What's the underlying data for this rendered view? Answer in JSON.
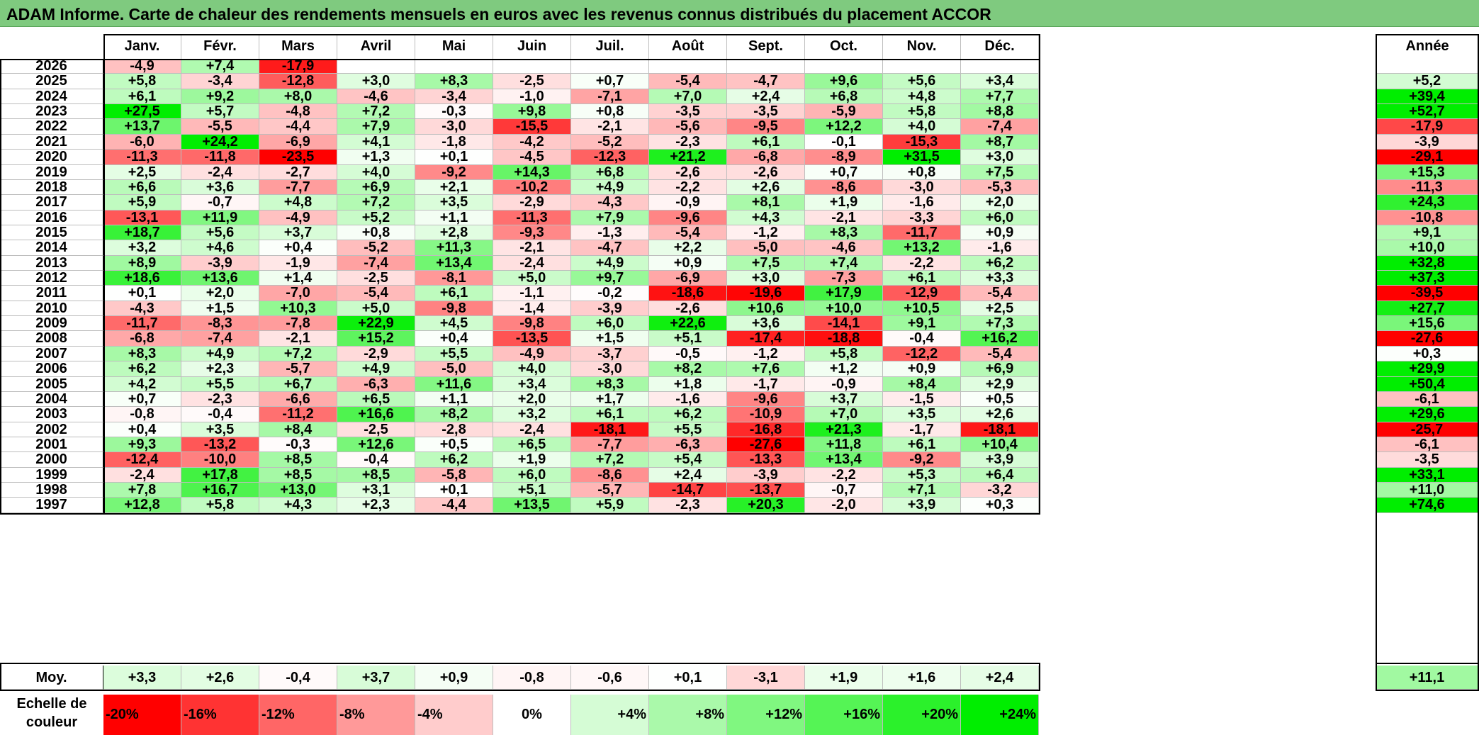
{
  "title": "ADAM Informe. Carte de chaleur des rendements mensuels en euros avec les revenus connus distribués du placement ACCOR",
  "chart_data": {
    "type": "heatmap",
    "title": "ADAM Informe. Carte de chaleur des rendements mensuels en euros avec les revenus connus distribués du placement ACCOR",
    "columns": [
      "Janv.",
      "Févr.",
      "Mars",
      "Avril",
      "Mai",
      "Juin",
      "Juil.",
      "Août",
      "Sept.",
      "Oct.",
      "Nov.",
      "Déc."
    ],
    "year_column_label": "Année",
    "rows": [
      {
        "year": "2026",
        "values": [
          "-4,9",
          "+7,4",
          "-17,9",
          "",
          "",
          "",
          "",
          "",
          "",
          "",
          "",
          ""
        ],
        "annual": ""
      },
      {
        "year": "2025",
        "values": [
          "+5,8",
          "-3,4",
          "-12,8",
          "+3,0",
          "+8,3",
          "-2,5",
          "+0,7",
          "-5,4",
          "-4,7",
          "+9,6",
          "+5,6",
          "+3,4"
        ],
        "annual": "+5,2"
      },
      {
        "year": "2024",
        "values": [
          "+6,1",
          "+9,2",
          "+8,0",
          "-4,6",
          "-3,4",
          "-1,0",
          "-7,1",
          "+7,0",
          "+2,4",
          "+6,8",
          "+4,8",
          "+7,7"
        ],
        "annual": "+39,4"
      },
      {
        "year": "2023",
        "values": [
          "+27,5",
          "+5,7",
          "-4,8",
          "+7,2",
          "-0,3",
          "+9,8",
          "+0,8",
          "-3,5",
          "-3,5",
          "-5,9",
          "+5,8",
          "+8,8"
        ],
        "annual": "+52,7"
      },
      {
        "year": "2022",
        "values": [
          "+13,7",
          "-5,5",
          "-4,4",
          "+7,9",
          "-3,0",
          "-15,5",
          "-2,1",
          "-5,6",
          "-9,5",
          "+12,2",
          "+4,0",
          "-7,4"
        ],
        "annual": "-17,9"
      },
      {
        "year": "2021",
        "values": [
          "-6,0",
          "+24,2",
          "-6,9",
          "+4,1",
          "-1,8",
          "-4,2",
          "-5,2",
          "-2,3",
          "+6,1",
          "-0,1",
          "-15,3",
          "+8,7"
        ],
        "annual": "-3,9"
      },
      {
        "year": "2020",
        "values": [
          "-11,3",
          "-11,8",
          "-23,5",
          "+1,3",
          "+0,1",
          "-4,5",
          "-12,3",
          "+21,2",
          "-6,8",
          "-8,9",
          "+31,5",
          "+3,0"
        ],
        "annual": "-29,1"
      },
      {
        "year": "2019",
        "values": [
          "+2,5",
          "-2,4",
          "-2,7",
          "+4,0",
          "-9,2",
          "+14,3",
          "+6,8",
          "-2,6",
          "-2,6",
          "+0,7",
          "+0,8",
          "+7,5"
        ],
        "annual": "+15,3"
      },
      {
        "year": "2018",
        "values": [
          "+6,6",
          "+3,6",
          "-7,7",
          "+6,9",
          "+2,1",
          "-10,2",
          "+4,9",
          "-2,2",
          "+2,6",
          "-8,6",
          "-3,0",
          "-5,3"
        ],
        "annual": "-11,3"
      },
      {
        "year": "2017",
        "values": [
          "+5,9",
          "-0,7",
          "+4,8",
          "+7,2",
          "+3,5",
          "-2,9",
          "-4,3",
          "-0,9",
          "+8,1",
          "+1,9",
          "-1,6",
          "+2,0"
        ],
        "annual": "+24,3"
      },
      {
        "year": "2016",
        "values": [
          "-13,1",
          "+11,9",
          "-4,9",
          "+5,2",
          "+1,1",
          "-11,3",
          "+7,9",
          "-9,6",
          "+4,3",
          "-2,1",
          "-3,3",
          "+6,0"
        ],
        "annual": "-10,8"
      },
      {
        "year": "2015",
        "values": [
          "+18,7",
          "+5,6",
          "+3,7",
          "+0,8",
          "+2,8",
          "-9,3",
          "-1,3",
          "-5,4",
          "-1,2",
          "+8,3",
          "-11,7",
          "+0,9"
        ],
        "annual": "+9,1"
      },
      {
        "year": "2014",
        "values": [
          "+3,2",
          "+4,6",
          "+0,4",
          "-5,2",
          "+11,3",
          "-2,1",
          "-4,7",
          "+2,2",
          "-5,0",
          "-4,6",
          "+13,2",
          "-1,6"
        ],
        "annual": "+10,0"
      },
      {
        "year": "2013",
        "values": [
          "+8,9",
          "-3,9",
          "-1,9",
          "-7,4",
          "+13,4",
          "-2,4",
          "+4,9",
          "+0,9",
          "+7,5",
          "+7,4",
          "-2,2",
          "+6,2"
        ],
        "annual": "+32,8"
      },
      {
        "year": "2012",
        "values": [
          "+18,6",
          "+13,6",
          "+1,4",
          "-2,5",
          "-8,1",
          "+5,0",
          "+9,7",
          "-6,9",
          "+3,0",
          "-7,3",
          "+6,1",
          "+3,3"
        ],
        "annual": "+37,3"
      },
      {
        "year": "2011",
        "values": [
          "+0,1",
          "+2,0",
          "-7,0",
          "-5,4",
          "+6,1",
          "-1,1",
          "-0,2",
          "-18,6",
          "-19,6",
          "+17,9",
          "-12,9",
          "-5,4"
        ],
        "annual": "-39,5"
      },
      {
        "year": "2010",
        "values": [
          "-4,3",
          "+1,5",
          "+10,3",
          "+5,0",
          "-9,8",
          "-1,4",
          "-3,9",
          "-2,6",
          "+10,6",
          "+10,0",
          "+10,5",
          "+2,5"
        ],
        "annual": "+27,7"
      },
      {
        "year": "2009",
        "values": [
          "-11,7",
          "-8,3",
          "-7,8",
          "+22,9",
          "+4,5",
          "-9,8",
          "+6,0",
          "+22,6",
          "+3,6",
          "-14,1",
          "+9,1",
          "+7,3"
        ],
        "annual": "+15,6"
      },
      {
        "year": "2008",
        "values": [
          "-6,8",
          "-7,4",
          "-2,1",
          "+15,2",
          "+0,4",
          "-13,5",
          "+1,5",
          "+5,1",
          "-17,4",
          "-18,8",
          "-0,4",
          "+16,2"
        ],
        "annual": "-27,6"
      },
      {
        "year": "2007",
        "values": [
          "+8,3",
          "+4,9",
          "+7,2",
          "-2,9",
          "+5,5",
          "-4,9",
          "-3,7",
          "-0,5",
          "-1,2",
          "+5,8",
          "-12,2",
          "-5,4"
        ],
        "annual": "+0,3"
      },
      {
        "year": "2006",
        "values": [
          "+6,2",
          "+2,3",
          "-5,7",
          "+4,9",
          "-5,0",
          "+4,0",
          "-3,0",
          "+8,2",
          "+7,6",
          "+1,2",
          "+0,9",
          "+6,9"
        ],
        "annual": "+29,9"
      },
      {
        "year": "2005",
        "values": [
          "+4,2",
          "+5,5",
          "+6,7",
          "-6,3",
          "+11,6",
          "+3,4",
          "+8,3",
          "+1,8",
          "-1,7",
          "-0,9",
          "+8,4",
          "+2,9"
        ],
        "annual": "+50,4"
      },
      {
        "year": "2004",
        "values": [
          "+0,7",
          "-2,3",
          "-6,6",
          "+6,5",
          "+1,1",
          "+2,0",
          "+1,7",
          "-1,6",
          "-9,6",
          "+3,7",
          "-1,5",
          "+0,5"
        ],
        "annual": "-6,1"
      },
      {
        "year": "2003",
        "values": [
          "-0,8",
          "-0,4",
          "-11,2",
          "+16,6",
          "+8,2",
          "+3,2",
          "+6,1",
          "+6,2",
          "-10,9",
          "+7,0",
          "+3,5",
          "+2,6"
        ],
        "annual": "+29,6"
      },
      {
        "year": "2002",
        "values": [
          "+0,4",
          "+3,5",
          "+8,4",
          "-2,5",
          "-2,8",
          "-2,4",
          "-18,1",
          "+5,5",
          "-16,8",
          "+21,3",
          "-1,7",
          "-18,1"
        ],
        "annual": "-25,7"
      },
      {
        "year": "2001",
        "values": [
          "+9,3",
          "-13,2",
          "-0,3",
          "+12,6",
          "+0,5",
          "+6,5",
          "-7,7",
          "-6,3",
          "-27,6",
          "+11,8",
          "+6,1",
          "+10,4"
        ],
        "annual": "-6,1"
      },
      {
        "year": "2000",
        "values": [
          "-12,4",
          "-10,0",
          "+8,5",
          "-0,4",
          "+6,2",
          "+1,9",
          "+7,2",
          "+5,4",
          "-13,3",
          "+13,4",
          "-9,2",
          "+3,9"
        ],
        "annual": "-3,5"
      },
      {
        "year": "1999",
        "values": [
          "-2,4",
          "+17,8",
          "+8,5",
          "+8,5",
          "-5,8",
          "+6,0",
          "-8,6",
          "+2,4",
          "-3,9",
          "-2,2",
          "+5,3",
          "+6,4"
        ],
        "annual": "+33,1"
      },
      {
        "year": "1998",
        "values": [
          "+7,8",
          "+16,7",
          "+13,0",
          "+3,1",
          "+0,1",
          "+5,1",
          "-5,7",
          "-14,7",
          "-13,7",
          "-0,7",
          "+7,1",
          "-3,2"
        ],
        "annual": "+11,0"
      },
      {
        "year": "1997",
        "values": [
          "+12,8",
          "+5,8",
          "+4,3",
          "+2,3",
          "-4,4",
          "+13,5",
          "+5,9",
          "-2,3",
          "+20,3",
          "-2,0",
          "+3,9",
          "+0,3"
        ],
        "annual": "+74,6"
      }
    ],
    "average_row": {
      "label": "Moy.",
      "values": [
        "+3,3",
        "+2,6",
        "-0,4",
        "+3,7",
        "+0,9",
        "-0,8",
        "-0,6",
        "+0,1",
        "-3,1",
        "+1,9",
        "+1,6",
        "+2,4"
      ],
      "annual": "+11,1"
    },
    "legend": {
      "label": "Echelle de couleur",
      "labels": [
        "-20%",
        "-16%",
        "-12%",
        "-8%",
        "-4%",
        "0%",
        "+4%",
        "+8%",
        "+12%",
        "+16%",
        "+20%",
        "+24%"
      ],
      "values": [
        -20,
        -16,
        -12,
        -8,
        -4,
        0,
        4,
        8,
        12,
        16,
        20,
        24
      ]
    },
    "colors": {
      "negative_max": "#ff0000",
      "neutral": "#ffffff",
      "positive_max": "#00ee00",
      "title_background": "#7fca7f"
    }
  }
}
